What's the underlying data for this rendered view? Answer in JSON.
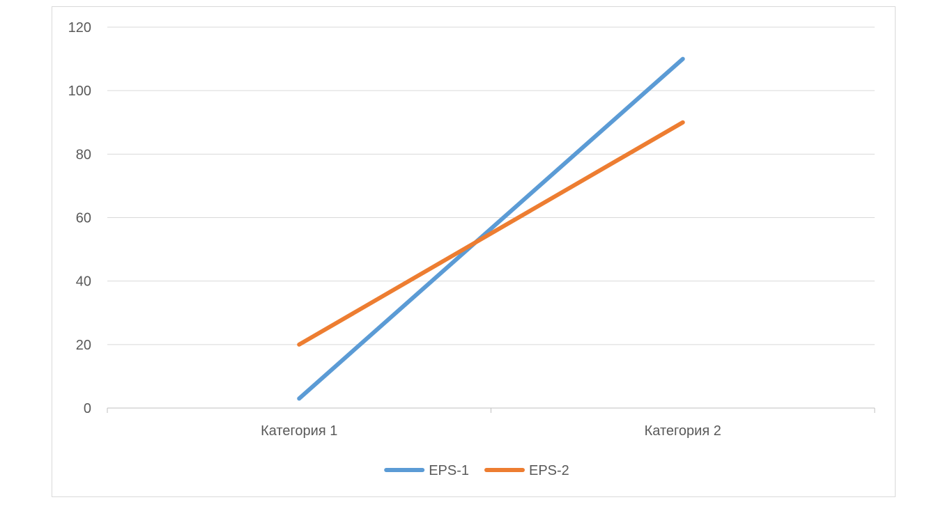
{
  "chart_data": {
    "type": "line",
    "categories": [
      "Категория 1",
      "Категория 2"
    ],
    "series": [
      {
        "name": "EPS-1",
        "values": [
          3,
          110
        ],
        "color": "#5b9bd5"
      },
      {
        "name": "EPS-2",
        "values": [
          20,
          90
        ],
        "color": "#ed7d31"
      }
    ],
    "y_ticks": [
      0,
      20,
      40,
      60,
      80,
      100,
      120
    ],
    "ylim": [
      0,
      120
    ],
    "grid": true,
    "gridline_color": "#d9d9d9",
    "axis_color": "#bfbfbf",
    "text_color": "#595959",
    "legend_position": "bottom"
  }
}
